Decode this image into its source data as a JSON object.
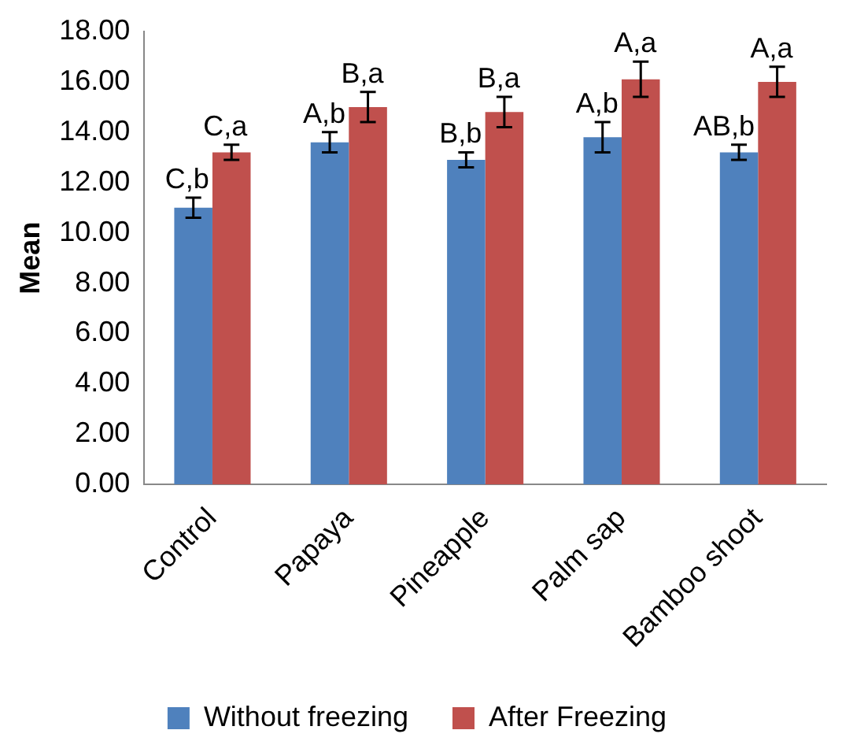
{
  "chart_data": {
    "type": "bar",
    "ylabel": "Mean",
    "categories": [
      "Control",
      "Papaya",
      "Pineapple",
      "Palm sap",
      "Bamboo shoot"
    ],
    "series": [
      {
        "name": "Without freezing",
        "color": "#4f81bd",
        "values": [
          11.0,
          13.6,
          12.9,
          13.8,
          13.2
        ],
        "errors": [
          0.4,
          0.4,
          0.3,
          0.6,
          0.3
        ],
        "value_labels": [
          "C,b",
          "A,b",
          "B,b",
          "A,b",
          "AB,b"
        ]
      },
      {
        "name": "After Freezing",
        "color": "#c0504d",
        "values": [
          13.2,
          15.0,
          14.8,
          16.1,
          16.0
        ],
        "errors": [
          0.3,
          0.6,
          0.6,
          0.7,
          0.6
        ],
        "value_labels": [
          "C,a",
          "B,a",
          "B,a",
          "A,a",
          "A,a"
        ]
      }
    ],
    "ylim": [
      0,
      18
    ],
    "yticks": [
      {
        "value": 0,
        "label": "0.00"
      },
      {
        "value": 2,
        "label": "2.00"
      },
      {
        "value": 4,
        "label": "4.00"
      },
      {
        "value": 6,
        "label": "6.00"
      },
      {
        "value": 8,
        "label": "8.00"
      },
      {
        "value": 10,
        "label": "10.00"
      },
      {
        "value": 12,
        "label": "12.00"
      },
      {
        "value": 14,
        "label": "14.00"
      },
      {
        "value": 16,
        "label": "16.00"
      },
      {
        "value": 18,
        "label": "18.00"
      }
    ],
    "grid": false,
    "legend": "bottom"
  }
}
